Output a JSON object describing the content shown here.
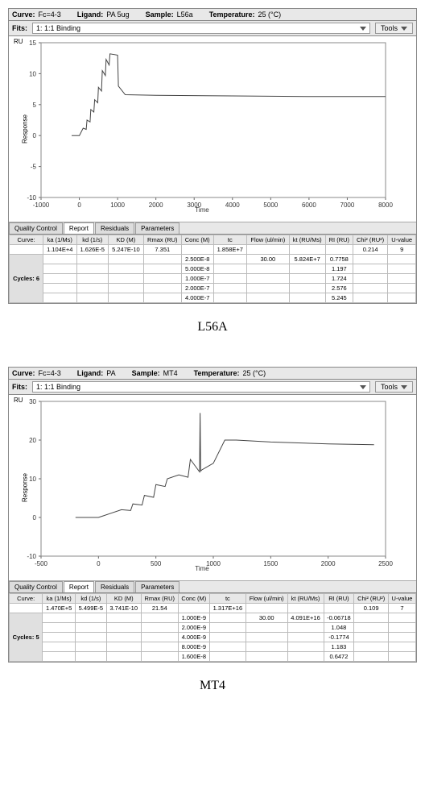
{
  "panels": [
    {
      "caption": "L56A",
      "info": {
        "curve_label": "Curve:",
        "curve_value": "Fc=4-3",
        "ligand_label": "Ligand:",
        "ligand_value": "PA 5ug",
        "sample_label": "Sample:",
        "sample_value": "L56a",
        "temp_label": "Temperature:",
        "temp_value": "25 (°C)"
      },
      "fits": {
        "label": "Fits:",
        "value": "1:   1:1 Binding",
        "tools": "Tools"
      },
      "chart": {
        "ru_label": "RU",
        "ylabel": "Response",
        "xlabel": "Time",
        "ylim": [
          -10,
          15
        ],
        "ytick_step": 5,
        "xlim": [
          -1000,
          8000
        ],
        "xtick_step": 1000,
        "bg": "#ffffff",
        "line_color": "#444444",
        "curve": [
          [
            -200,
            0
          ],
          [
            0,
            0
          ],
          [
            100,
            1.2
          ],
          [
            180,
            1
          ],
          [
            200,
            2.5
          ],
          [
            280,
            2.2
          ],
          [
            300,
            4.2
          ],
          [
            380,
            3.8
          ],
          [
            400,
            5.8
          ],
          [
            480,
            5.3
          ],
          [
            500,
            7.8
          ],
          [
            580,
            7.2
          ],
          [
            600,
            10.5
          ],
          [
            680,
            9.7
          ],
          [
            700,
            12.3
          ],
          [
            780,
            11.4
          ],
          [
            800,
            13.2
          ],
          [
            1000,
            13
          ],
          [
            1020,
            8
          ],
          [
            1200,
            6.6
          ],
          [
            2000,
            6.5
          ],
          [
            4000,
            6.4
          ],
          [
            6000,
            6.3
          ],
          [
            8000,
            6.3
          ]
        ]
      },
      "tabs": [
        "Quality Control",
        "Report",
        "Residuals",
        "Parameters"
      ],
      "active_tab": 1,
      "columns": [
        "Curve:",
        "ka (1/Ms)",
        "kd (1/s)",
        "KD (M)",
        "Rmax (RU)",
        "Conc (M)",
        "tc",
        "Flow (ul/min)",
        "kt (RU/Ms)",
        "RI (RU)",
        "Chi² (RU²)",
        "U-value"
      ],
      "row1": [
        "",
        "1.104E+4",
        "1.626E-5",
        "5.247E-10",
        "7.351",
        "",
        "1.858E+7",
        "",
        "",
        "",
        "0.214",
        "9"
      ],
      "cycles_label": "Cycles: 6",
      "data_rows": [
        [
          "",
          "",
          "",
          "",
          "",
          "2.500E-8",
          "",
          "30.00",
          "5.824E+7",
          "0.7758",
          "",
          ""
        ],
        [
          "",
          "",
          "",
          "",
          "",
          "5.000E-8",
          "",
          "",
          "",
          "1.197",
          "",
          ""
        ],
        [
          "",
          "",
          "",
          "",
          "",
          "1.000E-7",
          "",
          "",
          "",
          "1.724",
          "",
          ""
        ],
        [
          "",
          "",
          "",
          "",
          "",
          "2.000E-7",
          "",
          "",
          "",
          "2.576",
          "",
          ""
        ],
        [
          "",
          "",
          "",
          "",
          "",
          "4.000E-7",
          "",
          "",
          "",
          "5.245",
          "",
          ""
        ]
      ]
    },
    {
      "caption": "MT4",
      "info": {
        "curve_label": "Curve:",
        "curve_value": "Fc=4-3",
        "ligand_label": "Ligand:",
        "ligand_value": "PA",
        "sample_label": "Sample:",
        "sample_value": "MT4",
        "temp_label": "Temperature:",
        "temp_value": "25 (°C)"
      },
      "fits": {
        "label": "Fits:",
        "value": "1:   1:1 Binding",
        "tools": "Tools"
      },
      "chart": {
        "ru_label": "RU",
        "ylabel": "Response",
        "xlabel": "Time",
        "ylim": [
          -10,
          30
        ],
        "ytick_step": 10,
        "xlim": [
          -500,
          2500
        ],
        "xtick_step": 500,
        "bg": "#ffffff",
        "line_color": "#444444",
        "curve": [
          [
            -200,
            0
          ],
          [
            0,
            0
          ],
          [
            100,
            1
          ],
          [
            200,
            2
          ],
          [
            280,
            1.8
          ],
          [
            300,
            3.5
          ],
          [
            380,
            3.2
          ],
          [
            400,
            5.7
          ],
          [
            480,
            5.2
          ],
          [
            500,
            8.5
          ],
          [
            580,
            8
          ],
          [
            600,
            10
          ],
          [
            700,
            11
          ],
          [
            780,
            10.4
          ],
          [
            800,
            15
          ],
          [
            880,
            11.8
          ],
          [
            885,
            27
          ],
          [
            890,
            12
          ],
          [
            900,
            12.3
          ],
          [
            1000,
            14
          ],
          [
            1100,
            20
          ],
          [
            1200,
            20
          ],
          [
            1500,
            19.5
          ],
          [
            2000,
            19
          ],
          [
            2400,
            18.8
          ]
        ]
      },
      "tabs": [
        "Quality Control",
        "Report",
        "Residuals",
        "Parameters"
      ],
      "active_tab": 1,
      "columns": [
        "Curve:",
        "ka (1/Ms)",
        "kd (1/s)",
        "KD (M)",
        "Rmax (RU)",
        "Conc (M)",
        "tc",
        "Flow (ul/min)",
        "kt (RU/Ms)",
        "RI (RU)",
        "Chi² (RU²)",
        "U-value"
      ],
      "row1": [
        "",
        "1.470E+5",
        "5.499E-5",
        "3.741E-10",
        "21.54",
        "",
        "1.317E+16",
        "",
        "",
        "",
        "0.109",
        "7"
      ],
      "cycles_label": "Cycles: 5",
      "data_rows": [
        [
          "",
          "",
          "",
          "",
          "",
          "1.000E-9",
          "",
          "30.00",
          "4.091E+16",
          "-0.06718",
          "",
          ""
        ],
        [
          "",
          "",
          "",
          "",
          "",
          "2.000E-9",
          "",
          "",
          "",
          "1.048",
          "",
          ""
        ],
        [
          "",
          "",
          "",
          "",
          "",
          "4.000E-9",
          "",
          "",
          "",
          "-0.1774",
          "",
          ""
        ],
        [
          "",
          "",
          "",
          "",
          "",
          "8.000E-9",
          "",
          "",
          "",
          "1.183",
          "",
          ""
        ],
        [
          "",
          "",
          "",
          "",
          "",
          "1.600E-8",
          "",
          "",
          "",
          "0.6472",
          "",
          ""
        ]
      ]
    }
  ]
}
